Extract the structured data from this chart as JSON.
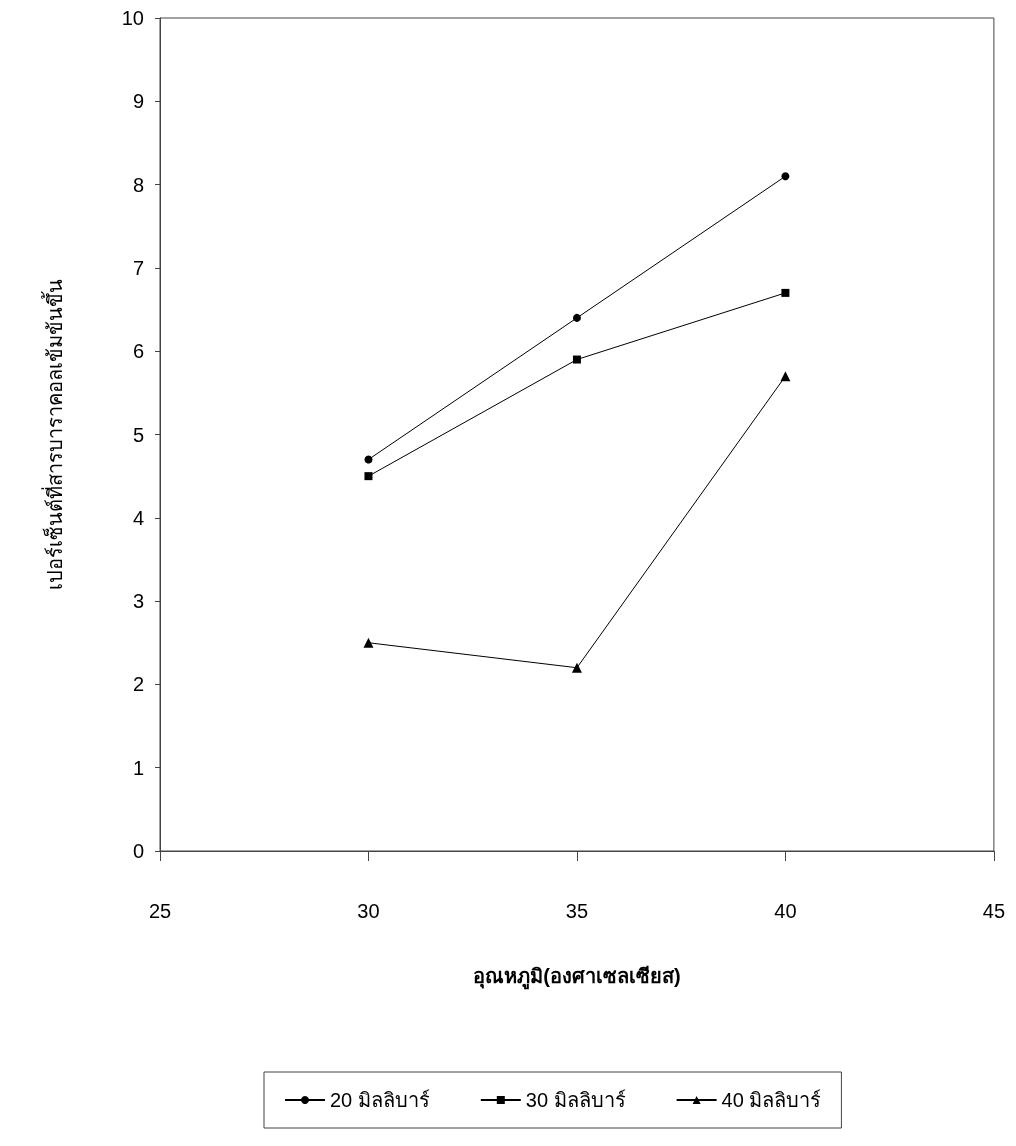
{
  "chart_data": {
    "type": "line",
    "xlabel": "อุณหภูมิ(องศาเซลเซียส)",
    "ylabel": "เปอร์เซ็นต์ที่สารบาราคอลเข้มข้นขึ้น",
    "x": [
      30,
      35,
      40
    ],
    "series": [
      {
        "name": "20 มิลลิบาร์",
        "color": "#000000",
        "marker": "circle",
        "values": [
          4.7,
          6.4,
          8.1
        ]
      },
      {
        "name": "30 มิลลิบาร์",
        "color": "#000000",
        "marker": "square",
        "values": [
          4.5,
          5.9,
          6.7
        ]
      },
      {
        "name": "40 มิลลิบาร์",
        "color": "#000000",
        "marker": "triangle",
        "values": [
          2.5,
          2.2,
          5.7
        ]
      }
    ],
    "xlim": [
      25,
      45
    ],
    "xticks": [
      25,
      30,
      35,
      40,
      45
    ],
    "ylim": [
      0,
      10
    ],
    "yticks": [
      0,
      1,
      2,
      3,
      4,
      5,
      6,
      7,
      8,
      9,
      10
    ],
    "grid": false,
    "legend": "bottom",
    "line_style": "solid"
  }
}
